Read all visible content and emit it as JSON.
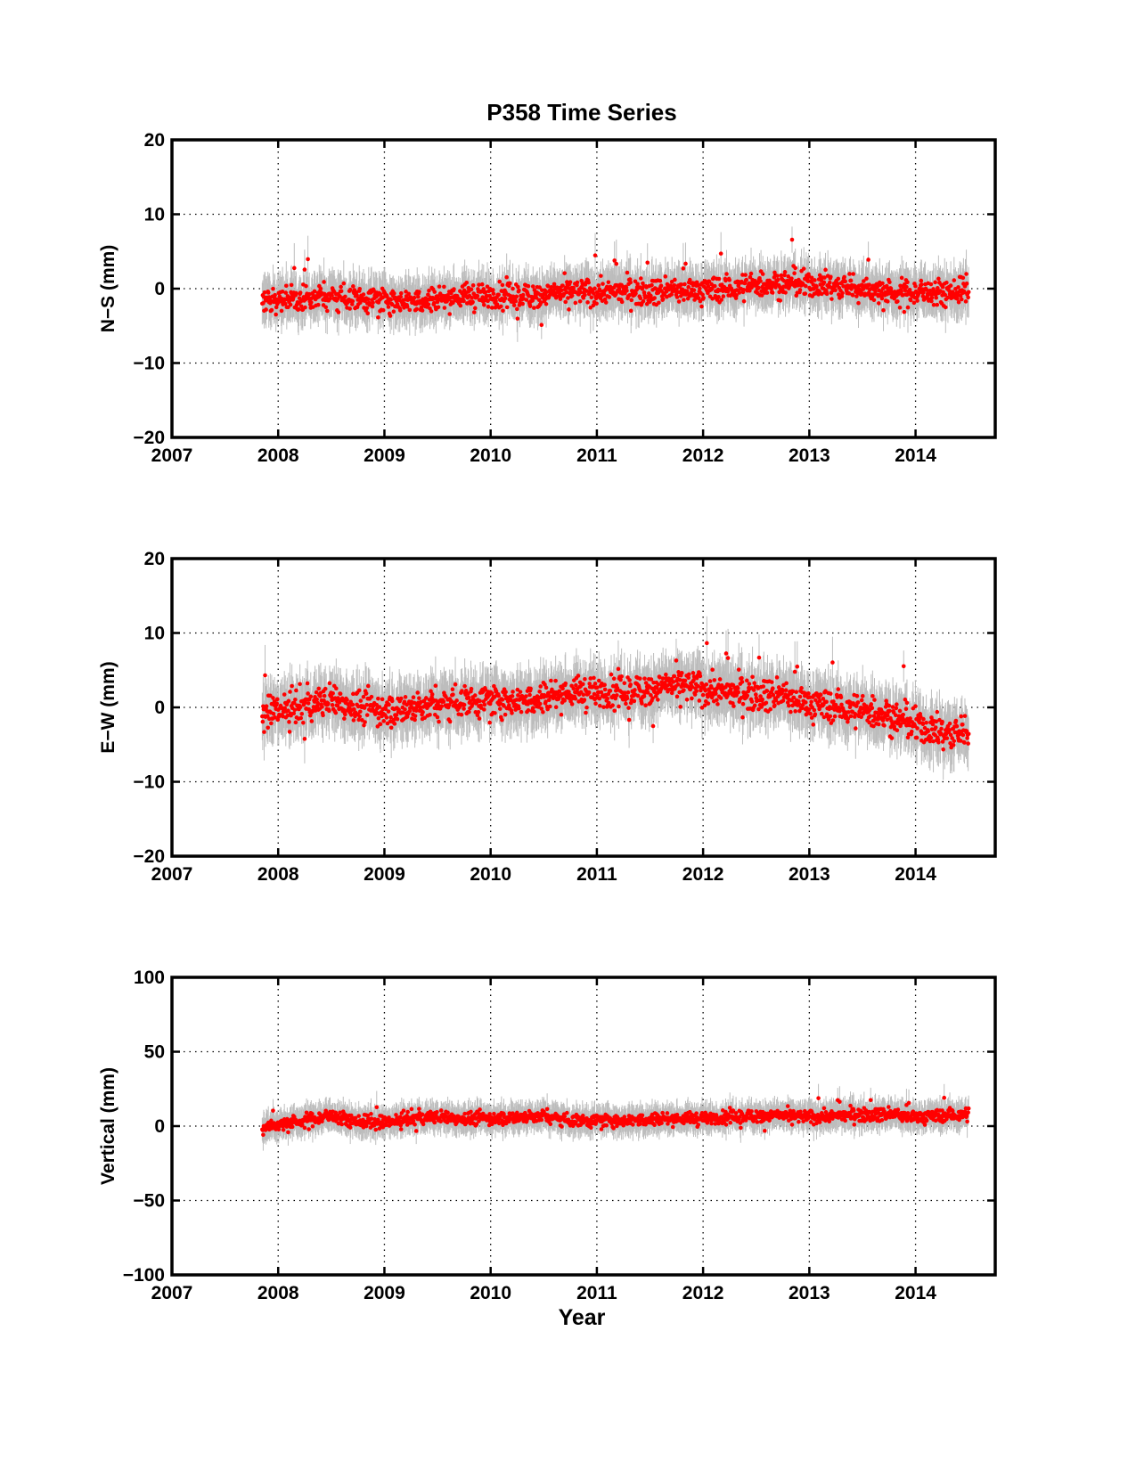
{
  "figure": {
    "title": "P358 Time Series",
    "xlabel": "Year"
  },
  "colors": {
    "point": "#ff0000",
    "errorbar": "#bdbdbd",
    "axes": "#000000",
    "grid": "#000000"
  },
  "chart_data": [
    {
      "type": "scatter",
      "ylabel": "N−S (mm)",
      "xlim": [
        2007,
        2014.75
      ],
      "ylim": [
        -20,
        20
      ],
      "xticks": [
        2007,
        2008,
        2009,
        2010,
        2011,
        2012,
        2013,
        2014
      ],
      "yticks": [
        -20,
        -10,
        0,
        10,
        20
      ],
      "ytick_labels": [
        "−20",
        "−10",
        "0",
        "10",
        "20"
      ],
      "grid": true,
      "series": [
        {
          "x": [
            2007.85,
            2008.0,
            2008.25,
            2008.5,
            2008.75,
            2009.0,
            2009.25,
            2009.5,
            2009.75,
            2010.0,
            2010.25,
            2010.5,
            2010.75,
            2011.0,
            2011.25,
            2011.5,
            2011.75,
            2012.0,
            2012.25,
            2012.5,
            2012.75,
            2013.0,
            2013.25,
            2013.5,
            2013.75,
            2014.0,
            2014.25,
            2014.5
          ],
          "y": [
            -1.5,
            -1.5,
            -1.2,
            -1.0,
            -1.2,
            -1.5,
            -1.5,
            -1.3,
            -1.0,
            -1.0,
            -1.0,
            -0.8,
            -0.5,
            -0.5,
            -0.3,
            -0.3,
            -0.3,
            -0.2,
            0.0,
            0.5,
            0.8,
            0.5,
            0.3,
            0.0,
            -0.5,
            -0.5,
            -0.5,
            -0.3
          ],
          "spread": 1.6,
          "errorbar_halfwidth": 2.5
        }
      ]
    },
    {
      "type": "scatter",
      "ylabel": "E−W (mm)",
      "xlim": [
        2007,
        2014.75
      ],
      "ylim": [
        -20,
        20
      ],
      "xticks": [
        2007,
        2008,
        2009,
        2010,
        2011,
        2012,
        2013,
        2014
      ],
      "yticks": [
        -20,
        -10,
        0,
        10,
        20
      ],
      "ytick_labels": [
        "−20",
        "−10",
        "0",
        "10",
        "20"
      ],
      "grid": true,
      "series": [
        {
          "x": [
            2007.85,
            2008.0,
            2008.25,
            2008.5,
            2008.75,
            2009.0,
            2009.25,
            2009.5,
            2009.75,
            2010.0,
            2010.25,
            2010.5,
            2010.75,
            2011.0,
            2011.25,
            2011.5,
            2011.75,
            2012.0,
            2012.25,
            2012.5,
            2012.75,
            2013.0,
            2013.25,
            2013.5,
            2013.75,
            2014.0,
            2014.25,
            2014.5
          ],
          "y": [
            -1.0,
            -0.5,
            0.0,
            1.0,
            0.0,
            -0.5,
            0.0,
            0.5,
            1.0,
            1.0,
            1.0,
            1.5,
            2.0,
            2.0,
            2.0,
            2.5,
            3.0,
            2.5,
            2.0,
            2.0,
            1.5,
            0.5,
            0.0,
            -0.5,
            -1.0,
            -2.5,
            -3.5,
            -3.5
          ],
          "spread": 2.0,
          "errorbar_halfwidth": 3.0
        }
      ]
    },
    {
      "type": "scatter",
      "ylabel": "Vertical (mm)",
      "xlim": [
        2007,
        2014.75
      ],
      "ylim": [
        -100,
        100
      ],
      "xticks": [
        2007,
        2008,
        2009,
        2010,
        2011,
        2012,
        2013,
        2014
      ],
      "yticks": [
        -100,
        -50,
        0,
        50,
        100
      ],
      "ytick_labels": [
        "−100",
        "−50",
        "0",
        "50",
        "100"
      ],
      "grid": true,
      "series": [
        {
          "x": [
            2007.85,
            2008.0,
            2008.25,
            2008.5,
            2008.75,
            2009.0,
            2009.25,
            2009.5,
            2009.75,
            2010.0,
            2010.25,
            2010.5,
            2010.75,
            2011.0,
            2011.25,
            2011.5,
            2011.75,
            2012.0,
            2012.25,
            2012.5,
            2012.75,
            2013.0,
            2013.25,
            2013.5,
            2013.75,
            2014.0,
            2014.25,
            2014.5
          ],
          "y": [
            -1.0,
            1.0,
            4.0,
            7.0,
            3.0,
            2.0,
            5.0,
            6.0,
            5.0,
            5.0,
            6.0,
            7.0,
            4.0,
            4.0,
            4.0,
            5.0,
            5.0,
            5.0,
            6.0,
            7.0,
            7.0,
            6.0,
            7.0,
            8.0,
            8.0,
            6.0,
            7.0,
            8.0
          ],
          "spread": 4.0,
          "errorbar_halfwidth": 8.0
        }
      ]
    }
  ]
}
